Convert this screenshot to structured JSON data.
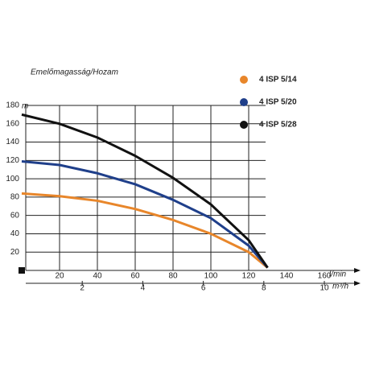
{
  "chart_data": {
    "type": "line",
    "title": "Emelőmagasság/Hozam",
    "y_unit": "m",
    "x_unit": "l/min",
    "x2_unit": "m³/h",
    "x": [
      0,
      20,
      40,
      60,
      80,
      100,
      120,
      130
    ],
    "series": [
      {
        "name": "4 ISP 5/14",
        "color": "#e8862a",
        "values": [
          84,
          81,
          76,
          67,
          55,
          40,
          20,
          3
        ]
      },
      {
        "name": "4 ISP 5/20",
        "color": "#1f3f8a",
        "values": [
          119,
          115,
          106,
          94,
          77,
          57,
          27,
          3
        ]
      },
      {
        "name": "4 ISP 5/28",
        "color": "#111111",
        "values": [
          170,
          160,
          145,
          125,
          101,
          72,
          33,
          3
        ]
      }
    ],
    "xlim": [
      0,
      160
    ],
    "xticks": [
      20,
      40,
      60,
      80,
      100,
      120,
      140,
      160
    ],
    "x2lim": [
      0,
      10
    ],
    "x2ticks": [
      2,
      4,
      6,
      8,
      10
    ],
    "ylim": [
      0,
      180
    ],
    "yticks": [
      20,
      40,
      60,
      80,
      100,
      120,
      140,
      160,
      180
    ],
    "grid": true
  }
}
